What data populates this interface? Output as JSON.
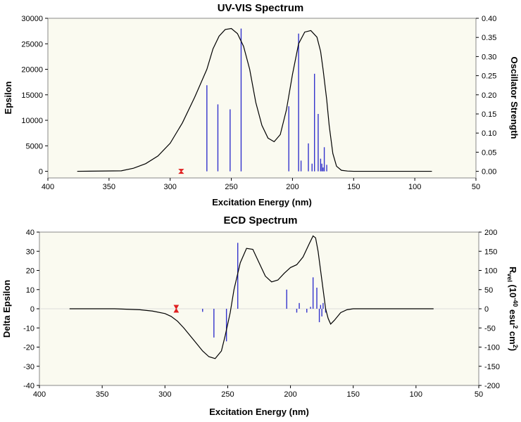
{
  "chart_data": [
    {
      "type": "line",
      "title": "UV-VIS Spectrum",
      "xlabel": "Excitation Energy (nm)",
      "ylabel": "Epsilon",
      "y2label": "Oscillator Strength",
      "xlim": [
        400,
        50
      ],
      "ylim": [
        -1300,
        30000
      ],
      "y2lim": [
        -0.0173,
        0.4
      ],
      "x_ticks": [
        400,
        350,
        300,
        250,
        200,
        150,
        100,
        50
      ],
      "y_ticks": [
        0,
        5000,
        10000,
        15000,
        20000,
        25000,
        30000
      ],
      "y2_ticks": [
        "0.00",
        "0.05",
        "0.10",
        "0.15",
        "0.20",
        "0.25",
        "0.30",
        "0.35",
        "0.40"
      ],
      "background": "#fafaf0",
      "curve_color": "#000000",
      "stick_color": "#3333cc",
      "marker_color": "#e02020",
      "curve": {
        "x": [
          376,
          340,
          330,
          320,
          310,
          300,
          290,
          280,
          270,
          265,
          260,
          255,
          250,
          245,
          240,
          235,
          230,
          225,
          220,
          215,
          210,
          205,
          200,
          195,
          190,
          185,
          180,
          177,
          175,
          172,
          170,
          167,
          164,
          160,
          155,
          150,
          100,
          86
        ],
        "y": [
          0,
          100,
          600,
          1500,
          3000,
          5500,
          9500,
          14500,
          20000,
          24000,
          26500,
          27800,
          28000,
          27000,
          24500,
          20000,
          13500,
          9000,
          6500,
          5800,
          7200,
          12000,
          19000,
          25000,
          27300,
          27600,
          26300,
          23500,
          20000,
          14000,
          9000,
          3500,
          1000,
          200,
          50,
          0,
          0,
          0
        ]
      },
      "sticks": [
        {
          "x": 270,
          "f": 0.225
        },
        {
          "x": 261,
          "f": 0.175
        },
        {
          "x": 251,
          "f": 0.162
        },
        {
          "x": 242,
          "f": 0.373
        },
        {
          "x": 203,
          "f": 0.17
        },
        {
          "x": 195,
          "f": 0.36
        },
        {
          "x": 193,
          "f": 0.028
        },
        {
          "x": 187,
          "f": 0.073
        },
        {
          "x": 184,
          "f": 0.02
        },
        {
          "x": 182,
          "f": 0.255
        },
        {
          "x": 179,
          "f": 0.15
        },
        {
          "x": 177,
          "f": 0.033
        },
        {
          "x": 176,
          "f": 0.02
        },
        {
          "x": 175,
          "f": 0.01
        },
        {
          "x": 174,
          "f": 0.063
        },
        {
          "x": 172,
          "f": 0.017
        }
      ],
      "marker_x": 291
    },
    {
      "type": "line",
      "title": "ECD Spectrum",
      "xlabel": "Excitation Energy (nm)",
      "ylabel": "Delta Epsilon",
      "y2label": "R_vel (10^-40 esu^2 cm^2)",
      "xlim": [
        400,
        50
      ],
      "ylim": [
        -40,
        40
      ],
      "y2lim": [
        -200,
        200
      ],
      "x_ticks": [
        400,
        350,
        300,
        250,
        200,
        150,
        100,
        50
      ],
      "y_ticks": [
        -40,
        -30,
        -20,
        -10,
        0,
        10,
        20,
        30,
        40
      ],
      "y2_ticks": [
        -200,
        -150,
        -100,
        -50,
        0,
        50,
        100,
        150,
        200
      ],
      "background": "#fafaf0",
      "curve_color": "#000000",
      "stick_color": "#3333cc",
      "marker_color": "#e02020",
      "curve": {
        "x": [
          376,
          340,
          320,
          310,
          300,
          295,
          290,
          285,
          280,
          275,
          270,
          265,
          260,
          255,
          252,
          248,
          245,
          240,
          235,
          230,
          225,
          220,
          215,
          210,
          205,
          200,
          195,
          190,
          185,
          182,
          180,
          178,
          175,
          172,
          170,
          168,
          165,
          160,
          155,
          150,
          100,
          86
        ],
        "y": [
          0,
          0,
          -0.5,
          -1.2,
          -2.5,
          -4,
          -6.5,
          -10,
          -14,
          -18,
          -22,
          -25,
          -26,
          -22,
          -14,
          -2,
          10,
          24,
          31.5,
          31,
          24,
          17,
          14,
          15,
          18.5,
          21.5,
          23,
          27,
          34,
          38,
          37,
          30,
          15,
          0,
          -5,
          -8,
          -6,
          -2,
          -0.5,
          0,
          0,
          0
        ]
      },
      "sticks": [
        {
          "x": 270,
          "r": -8
        },
        {
          "x": 261,
          "r": -75
        },
        {
          "x": 251,
          "r": -85
        },
        {
          "x": 242,
          "r": 172
        },
        {
          "x": 203,
          "r": 50
        },
        {
          "x": 195,
          "r": -10
        },
        {
          "x": 193,
          "r": 15
        },
        {
          "x": 187,
          "r": -10
        },
        {
          "x": 184,
          "r": 5
        },
        {
          "x": 182,
          "r": 82
        },
        {
          "x": 179,
          "r": 55
        },
        {
          "x": 177,
          "r": -35
        },
        {
          "x": 176,
          "r": 10
        },
        {
          "x": 175,
          "r": -20
        },
        {
          "x": 174,
          "r": 15
        },
        {
          "x": 172,
          "r": -10
        }
      ],
      "marker_x": 291
    }
  ]
}
